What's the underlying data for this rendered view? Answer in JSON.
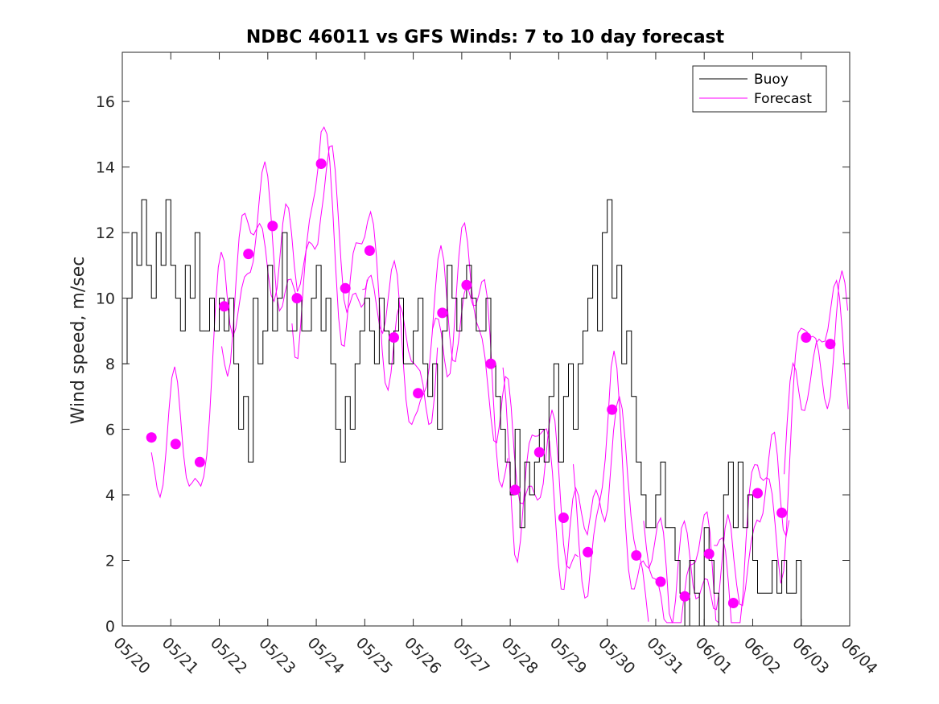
{
  "chart_data": {
    "type": "line",
    "title": "NDBC 46011 vs GFS Winds: 7 to 10 day forecast",
    "xlabel": "",
    "ylabel": "Wind speed, m/sec",
    "x_axis": {
      "ticks": [
        "05/20",
        "05/21",
        "05/22",
        "05/23",
        "05/24",
        "05/25",
        "05/26",
        "05/27",
        "05/28",
        "05/29",
        "05/30",
        "05/31",
        "06/01",
        "06/02",
        "06/03",
        "06/04"
      ],
      "range_days": [
        0,
        15
      ]
    },
    "ylim": [
      0,
      17.5
    ],
    "y_ticks": [
      0,
      2,
      4,
      6,
      8,
      10,
      12,
      14,
      16
    ],
    "grid": false,
    "legend": {
      "placement": "top-right",
      "entries": [
        {
          "label": "Buoy",
          "color": "#000000"
        },
        {
          "label": "Forecast",
          "color": "#ff00ff"
        }
      ]
    },
    "colors": {
      "buoy": "#000000",
      "forecast": "#ff00ff"
    },
    "series": [
      {
        "name": "Buoy",
        "x": [
          0,
          0.1,
          0.2,
          0.3,
          0.4,
          0.5,
          0.6,
          0.7,
          0.8,
          0.9,
          1.0,
          1.1,
          1.2,
          1.3,
          1.4,
          1.5,
          1.6,
          1.7,
          1.8,
          1.9,
          2.0,
          2.1,
          2.2,
          2.3,
          2.4,
          2.5,
          2.6,
          2.7,
          2.8,
          2.9,
          3.0,
          3.1,
          3.2,
          3.3,
          3.4,
          3.5,
          3.6,
          3.7,
          3.8,
          3.9,
          4.0,
          4.1,
          4.2,
          4.3,
          4.4,
          4.5,
          4.6,
          4.7,
          4.8,
          4.9,
          5.0,
          5.1,
          5.2,
          5.3,
          5.4,
          5.5,
          5.6,
          5.7,
          5.8,
          5.9,
          6.0,
          6.1,
          6.2,
          6.3,
          6.4,
          6.5,
          6.6,
          6.7,
          6.8,
          6.9,
          7.0,
          7.1,
          7.2,
          7.3,
          7.4,
          7.5,
          7.6,
          7.7,
          7.8,
          7.9,
          8.0,
          8.1,
          8.2,
          8.3,
          8.4,
          8.5,
          8.6,
          8.7,
          8.8,
          8.9,
          9.0,
          9.1,
          9.2,
          9.3,
          9.4,
          9.5,
          9.6,
          9.7,
          9.8,
          9.9,
          10.0,
          10.1,
          10.2,
          10.3,
          10.4,
          10.5,
          10.6,
          10.7,
          10.8,
          10.9,
          11.0,
          11.1,
          11.2,
          11.3,
          11.4,
          11.5,
          11.6,
          11.7,
          11.8,
          11.9,
          12.0,
          12.1,
          12.2,
          12.3,
          12.4,
          12.5,
          12.6,
          12.7,
          12.8,
          12.9,
          13.0,
          13.1,
          13.2,
          13.3,
          13.4,
          13.5,
          13.6,
          13.7,
          13.8,
          13.9,
          14.0,
          14.1,
          14.2,
          14.3,
          14.4,
          14.5,
          14.6,
          14.7,
          14.8,
          14.9,
          15.0
        ],
        "values": [
          8,
          10,
          12,
          11,
          13,
          11,
          10,
          12,
          11,
          13,
          11,
          10,
          9,
          11,
          10,
          12,
          9,
          9,
          10,
          9,
          10,
          9,
          10,
          8,
          6,
          7,
          5,
          10,
          8,
          9,
          11,
          9,
          10,
          12,
          9,
          9,
          10,
          9,
          9,
          10,
          11,
          9,
          10,
          8,
          6,
          5,
          7,
          6,
          8,
          9,
          10,
          9,
          8,
          10,
          9,
          8,
          9,
          10,
          8,
          8,
          9,
          10,
          8,
          7,
          8,
          6,
          9,
          11,
          10,
          9,
          10,
          11,
          10,
          9,
          9,
          10,
          8,
          7,
          6,
          5,
          4,
          6,
          3,
          5,
          4,
          5,
          6,
          5,
          7,
          8,
          5,
          7,
          8,
          6,
          8,
          9,
          10,
          11,
          9,
          12,
          13,
          10,
          11,
          8,
          9,
          7,
          5,
          4,
          3,
          3,
          4,
          5,
          3,
          3,
          2,
          1,
          0,
          2,
          1,
          0,
          3,
          2,
          1,
          0,
          4,
          5,
          3,
          5,
          3,
          4,
          2,
          1,
          1,
          1,
          2,
          1,
          2,
          1,
          1,
          2,
          0,
          0,
          0,
          0,
          0,
          0,
          0,
          0,
          0,
          0,
          0
        ],
        "display_end_day": 14.4
      },
      {
        "name": "Forecast",
        "x": [
          0.6,
          1.1,
          1.6,
          2.1,
          2.6,
          3.1,
          3.6,
          4.1,
          4.6,
          5.1,
          5.6,
          6.1,
          6.6,
          7.1,
          7.6,
          8.1,
          8.6,
          9.1,
          9.6,
          10.1,
          10.6,
          11.1,
          11.6,
          12.1,
          12.6,
          13.1,
          13.6,
          14.1,
          14.6
        ],
        "values": [
          5.75,
          5.55,
          5.0,
          9.75,
          11.35,
          12.2,
          10.0,
          14.1,
          10.3,
          11.45,
          8.8,
          7.1,
          9.55,
          10.4,
          8.0,
          4.15,
          5.3,
          3.3,
          2.25,
          6.6,
          2.15,
          1.35,
          0.9,
          2.2,
          0.7,
          4.05,
          3.45,
          8.8,
          8.6
        ]
      }
    ]
  }
}
